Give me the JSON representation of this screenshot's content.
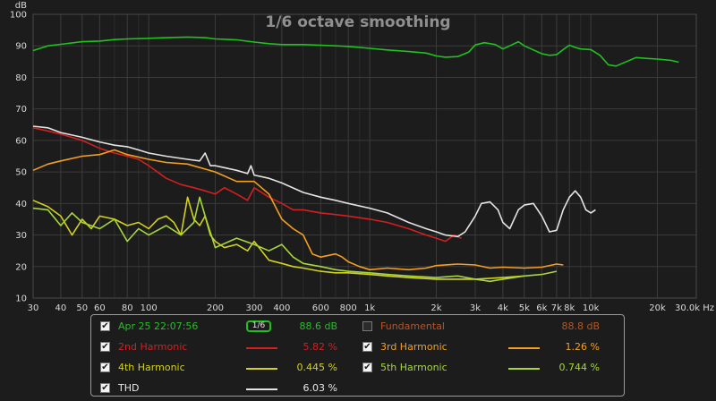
{
  "chart_data": {
    "type": "line",
    "title": "1/6 octave smoothing",
    "ylabel": "dB",
    "xlabel": "Hz",
    "x_scale": "log",
    "xlim": [
      30,
      30000
    ],
    "ylim": [
      10,
      100
    ],
    "grid": true,
    "x_ticks": [
      {
        "v": 30,
        "label": "30"
      },
      {
        "v": 40,
        "label": "40"
      },
      {
        "v": 50,
        "label": "50"
      },
      {
        "v": 60,
        "label": "60"
      },
      {
        "v": 80,
        "label": "80"
      },
      {
        "v": 100,
        "label": "100"
      },
      {
        "v": 200,
        "label": "200"
      },
      {
        "v": 300,
        "label": "300"
      },
      {
        "v": 400,
        "label": "400"
      },
      {
        "v": 600,
        "label": "600"
      },
      {
        "v": 800,
        "label": "800"
      },
      {
        "v": 1000,
        "label": "1k"
      },
      {
        "v": 2000,
        "label": "2k"
      },
      {
        "v": 3000,
        "label": "3k"
      },
      {
        "v": 4000,
        "label": "4k"
      },
      {
        "v": 5000,
        "label": "5k"
      },
      {
        "v": 6000,
        "label": "6k"
      },
      {
        "v": 7000,
        "label": "7k"
      },
      {
        "v": 8000,
        "label": "8k"
      },
      {
        "v": 10000,
        "label": "10k"
      },
      {
        "v": 20000,
        "label": "20k"
      },
      {
        "v": 30000,
        "label": "30.0k Hz"
      }
    ],
    "y_ticks": [
      {
        "v": 10,
        "label": "10"
      },
      {
        "v": 20,
        "label": "20"
      },
      {
        "v": 30,
        "label": "30"
      },
      {
        "v": 40,
        "label": "40"
      },
      {
        "v": 50,
        "label": "50"
      },
      {
        "v": 60,
        "label": "60"
      },
      {
        "v": 70,
        "label": "70"
      },
      {
        "v": 80,
        "label": "80"
      },
      {
        "v": 90,
        "label": "90"
      },
      {
        "v": 100,
        "label": "100"
      }
    ],
    "series": [
      {
        "name": "Apr 25 22:07:56",
        "color": "#1fc21f",
        "points": [
          [
            30,
            88.5
          ],
          [
            35,
            90
          ],
          [
            40,
            90.5
          ],
          [
            50,
            91.3
          ],
          [
            60,
            91.5
          ],
          [
            70,
            92
          ],
          [
            80,
            92.2
          ],
          [
            100,
            92.4
          ],
          [
            120,
            92.6
          ],
          [
            150,
            92.8
          ],
          [
            180,
            92.6
          ],
          [
            200,
            92.2
          ],
          [
            250,
            91.9
          ],
          [
            300,
            91.2
          ],
          [
            350,
            90.7
          ],
          [
            400,
            90.4
          ],
          [
            500,
            90.4
          ],
          [
            600,
            90.2
          ],
          [
            700,
            90.0
          ],
          [
            800,
            89.8
          ],
          [
            1000,
            89.2
          ],
          [
            1200,
            88.7
          ],
          [
            1500,
            88.2
          ],
          [
            1800,
            87.7
          ],
          [
            2000,
            86.8
          ],
          [
            2200,
            86.4
          ],
          [
            2500,
            86.6
          ],
          [
            2800,
            88
          ],
          [
            3000,
            90.3
          ],
          [
            3300,
            91
          ],
          [
            3700,
            90.4
          ],
          [
            4000,
            89
          ],
          [
            4300,
            90
          ],
          [
            4700,
            91.3
          ],
          [
            5000,
            90
          ],
          [
            5500,
            88.7
          ],
          [
            6000,
            87.5
          ],
          [
            6500,
            87
          ],
          [
            7000,
            87.2
          ],
          [
            7500,
            88.8
          ],
          [
            8000,
            90.2
          ],
          [
            8500,
            89.5
          ],
          [
            9000,
            89
          ],
          [
            10000,
            88.8
          ],
          [
            11000,
            87
          ],
          [
            12000,
            84
          ],
          [
            13000,
            83.6
          ],
          [
            14500,
            85
          ],
          [
            16000,
            86.3
          ],
          [
            18000,
            86
          ],
          [
            20000,
            85.8
          ],
          [
            23000,
            85.4
          ],
          [
            25000,
            84.8
          ]
        ]
      },
      {
        "name": "2nd Harmonic",
        "color": "#d22020",
        "points": [
          [
            30,
            64
          ],
          [
            35,
            63
          ],
          [
            40,
            62
          ],
          [
            50,
            60
          ],
          [
            60,
            57.5
          ],
          [
            70,
            56
          ],
          [
            80,
            55
          ],
          [
            90,
            54
          ],
          [
            100,
            52
          ],
          [
            120,
            48
          ],
          [
            140,
            46
          ],
          [
            160,
            45
          ],
          [
            180,
            44
          ],
          [
            200,
            43
          ],
          [
            220,
            45
          ],
          [
            250,
            43
          ],
          [
            280,
            41
          ],
          [
            300,
            45
          ],
          [
            350,
            42
          ],
          [
            400,
            40
          ],
          [
            450,
            38
          ],
          [
            500,
            38
          ],
          [
            600,
            37
          ],
          [
            700,
            36.5
          ],
          [
            800,
            36
          ],
          [
            1000,
            35
          ],
          [
            1200,
            34
          ],
          [
            1500,
            32
          ],
          [
            1800,
            30
          ],
          [
            2000,
            29
          ],
          [
            2200,
            28
          ],
          [
            2400,
            30
          ],
          [
            2600,
            29
          ]
        ]
      },
      {
        "name": "3rd Harmonic",
        "color": "#f39f22",
        "points": [
          [
            30,
            50.5
          ],
          [
            35,
            52.5
          ],
          [
            40,
            53.5
          ],
          [
            50,
            55
          ],
          [
            60,
            55.5
          ],
          [
            70,
            57
          ],
          [
            80,
            55.5
          ],
          [
            100,
            54
          ],
          [
            120,
            53
          ],
          [
            150,
            52.5
          ],
          [
            200,
            50
          ],
          [
            250,
            47
          ],
          [
            300,
            47
          ],
          [
            350,
            43
          ],
          [
            400,
            35
          ],
          [
            450,
            32
          ],
          [
            500,
            30
          ],
          [
            550,
            24
          ],
          [
            600,
            23
          ],
          [
            700,
            24
          ],
          [
            750,
            23
          ],
          [
            800,
            21.5
          ],
          [
            900,
            20
          ],
          [
            1000,
            19
          ],
          [
            1200,
            19.5
          ],
          [
            1500,
            19
          ],
          [
            1800,
            19.5
          ],
          [
            2000,
            20.3
          ],
          [
            2500,
            20.8
          ],
          [
            3000,
            20.5
          ],
          [
            3500,
            19.5
          ],
          [
            4000,
            19.8
          ],
          [
            5000,
            19.5
          ],
          [
            6000,
            19.8
          ],
          [
            7000,
            20.8
          ],
          [
            7500,
            20.5
          ]
        ]
      },
      {
        "name": "4th Harmonic",
        "color": "#d2d21e",
        "points": [
          [
            30,
            41
          ],
          [
            35,
            39
          ],
          [
            40,
            36
          ],
          [
            45,
            30
          ],
          [
            50,
            35
          ],
          [
            55,
            32
          ],
          [
            60,
            36
          ],
          [
            70,
            35
          ],
          [
            80,
            33
          ],
          [
            90,
            34
          ],
          [
            100,
            32
          ],
          [
            110,
            35
          ],
          [
            120,
            36
          ],
          [
            130,
            34
          ],
          [
            140,
            30
          ],
          [
            150,
            42
          ],
          [
            160,
            35
          ],
          [
            170,
            33
          ],
          [
            180,
            36
          ],
          [
            190,
            30
          ],
          [
            200,
            28
          ],
          [
            220,
            26
          ],
          [
            250,
            27
          ],
          [
            280,
            25
          ],
          [
            300,
            28
          ],
          [
            350,
            22
          ],
          [
            400,
            21
          ],
          [
            450,
            20
          ],
          [
            500,
            19.5
          ],
          [
            600,
            18.5
          ],
          [
            700,
            18
          ],
          [
            800,
            18
          ],
          [
            1000,
            17.5
          ],
          [
            1200,
            17
          ],
          [
            1500,
            16.5
          ],
          [
            2000,
            16
          ],
          [
            3000,
            16
          ],
          [
            4000,
            16.5
          ],
          [
            5000,
            17
          ]
        ]
      },
      {
        "name": "5th Harmonic",
        "color": "#a6d63c",
        "points": [
          [
            30,
            38.5
          ],
          [
            35,
            38
          ],
          [
            40,
            33
          ],
          [
            45,
            37
          ],
          [
            50,
            34
          ],
          [
            60,
            32
          ],
          [
            70,
            35
          ],
          [
            80,
            28
          ],
          [
            90,
            32
          ],
          [
            100,
            30
          ],
          [
            120,
            33
          ],
          [
            140,
            30
          ],
          [
            160,
            34
          ],
          [
            170,
            42
          ],
          [
            180,
            36
          ],
          [
            200,
            26
          ],
          [
            250,
            29
          ],
          [
            300,
            27
          ],
          [
            350,
            25
          ],
          [
            400,
            27
          ],
          [
            450,
            23
          ],
          [
            500,
            21
          ],
          [
            600,
            20
          ],
          [
            700,
            19
          ],
          [
            800,
            18.5
          ],
          [
            1000,
            18
          ],
          [
            1200,
            17.5
          ],
          [
            1500,
            17
          ],
          [
            2000,
            16.5
          ],
          [
            2500,
            17
          ],
          [
            3000,
            16
          ],
          [
            3500,
            15.3
          ],
          [
            4000,
            16
          ],
          [
            5000,
            17
          ],
          [
            6000,
            17.5
          ],
          [
            7000,
            18.5
          ]
        ]
      },
      {
        "name": "THD",
        "color": "#e4e4e4",
        "points": [
          [
            30,
            64.5
          ],
          [
            35,
            64
          ],
          [
            40,
            62.5
          ],
          [
            50,
            61
          ],
          [
            60,
            59.5
          ],
          [
            70,
            58.5
          ],
          [
            80,
            58
          ],
          [
            90,
            57
          ],
          [
            100,
            56
          ],
          [
            120,
            55
          ],
          [
            150,
            54
          ],
          [
            170,
            53.5
          ],
          [
            180,
            56
          ],
          [
            190,
            52
          ],
          [
            200,
            52
          ],
          [
            250,
            50.5
          ],
          [
            280,
            49.5
          ],
          [
            290,
            52
          ],
          [
            300,
            49
          ],
          [
            350,
            48
          ],
          [
            400,
            46.5
          ],
          [
            500,
            43.5
          ],
          [
            600,
            42
          ],
          [
            700,
            41
          ],
          [
            800,
            40
          ],
          [
            1000,
            38.5
          ],
          [
            1200,
            37
          ],
          [
            1500,
            34
          ],
          [
            1800,
            32
          ],
          [
            2000,
            31
          ],
          [
            2200,
            30
          ],
          [
            2500,
            29.5
          ],
          [
            2700,
            31
          ],
          [
            3000,
            36
          ],
          [
            3200,
            40
          ],
          [
            3500,
            40.5
          ],
          [
            3800,
            38
          ],
          [
            4000,
            34
          ],
          [
            4300,
            32
          ],
          [
            4700,
            38
          ],
          [
            5000,
            39.5
          ],
          [
            5500,
            40
          ],
          [
            6000,
            36
          ],
          [
            6500,
            31
          ],
          [
            7000,
            31.5
          ],
          [
            7500,
            38
          ],
          [
            8000,
            42
          ],
          [
            8500,
            44
          ],
          [
            9000,
            42
          ],
          [
            9500,
            38
          ],
          [
            10000,
            37
          ],
          [
            10500,
            38
          ]
        ]
      }
    ],
    "legend": {
      "placement": "bottom",
      "items": [
        {
          "label": "Apr 25 22:07:56",
          "value": "88.6 dB",
          "checked": true,
          "color": "#1fc21f",
          "label_color": "#1fc21f",
          "value_color": "#1fc21f"
        },
        {
          "label": "Fundamental",
          "value": "88.8 dB",
          "checked": false,
          "color": "",
          "label_color": "#b3572a",
          "value_color": "#b3572a"
        },
        {
          "label": "2nd Harmonic",
          "value": "5.82 %",
          "checked": true,
          "color": "#d22020",
          "label_color": "#d22020",
          "value_color": "#d22020"
        },
        {
          "label": "3rd Harmonic",
          "value": "1.26 %",
          "checked": true,
          "color": "#f39f22",
          "label_color": "#f39f22",
          "value_color": "#f39f22"
        },
        {
          "label": "4th Harmonic",
          "value": "0.445 %",
          "checked": true,
          "color": "#d2d21e",
          "label_color": "#d2d21e",
          "value_color": "#d2d21e"
        },
        {
          "label": "5th Harmonic",
          "value": "0.744 %",
          "checked": true,
          "color": "#a6d63c",
          "label_color": "#a6d63c",
          "value_color": "#a6d63c"
        },
        {
          "label": "THD",
          "value": "6.03 %",
          "checked": true,
          "color": "#e4e4e4",
          "label_color": "#e8e8e8",
          "value_color": "#e8e8e8"
        }
      ],
      "smoothing_label": "1/6"
    }
  }
}
